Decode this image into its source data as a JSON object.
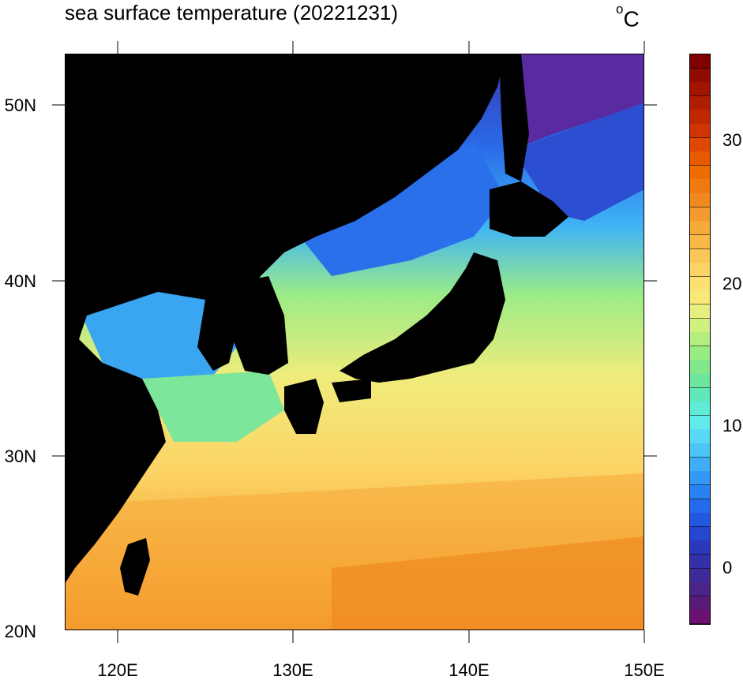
{
  "header": {
    "title": "sea surface temperature (20221231)",
    "unit_sup": "o",
    "unit": "C"
  },
  "axes": {
    "y_ticks": [
      "50N",
      "40N",
      "30N",
      "20N"
    ],
    "x_ticks": [
      "120E",
      "130E",
      "140E",
      "150E"
    ]
  },
  "colorbar": {
    "labels": [
      "30",
      "20",
      "10",
      "0"
    ],
    "colors": [
      "#7f0000",
      "#8f0a00",
      "#a01400",
      "#b01e00",
      "#c02800",
      "#d03400",
      "#df4800",
      "#e85a00",
      "#ee6c00",
      "#f07a10",
      "#f28820",
      "#f49a30",
      "#f6aa3a",
      "#f8b848",
      "#fac658",
      "#fcd466",
      "#fde070",
      "#f8e878",
      "#e8ee80",
      "#d0f080",
      "#b4ee80",
      "#98ec84",
      "#80e88a",
      "#6ce69c",
      "#60e8b8",
      "#60ecd4",
      "#60eaea",
      "#58d8f4",
      "#4cc4f6",
      "#40aef6",
      "#3498f6",
      "#2a82f2",
      "#246cec",
      "#2258e0",
      "#2646d0",
      "#2c38bc",
      "#3430aa",
      "#3e2a98",
      "#4a2488",
      "#5a1a78",
      "#6a1070"
    ],
    "land_color": "#000000"
  }
}
